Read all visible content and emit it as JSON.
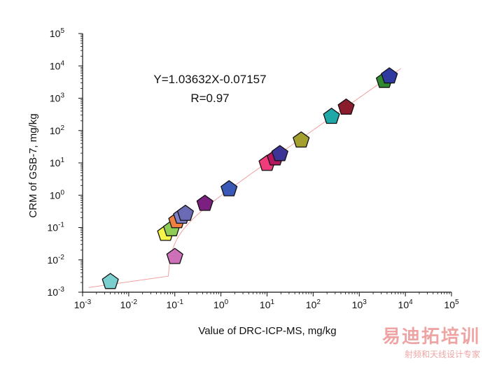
{
  "chart_data": {
    "type": "scatter",
    "title": "",
    "xlabel": "Value of DRC-ICP-MS, mg/kg",
    "ylabel": "CRM of GSB-7, mg/kg",
    "x_scale": "log",
    "y_scale": "log",
    "xlim": [
      0.001,
      100000
    ],
    "ylim": [
      0.001,
      100000
    ],
    "x_ticks": [
      {
        "base": "10",
        "exp": "-3"
      },
      {
        "base": "10",
        "exp": "-2"
      },
      {
        "base": "10",
        "exp": "-1"
      },
      {
        "base": "10",
        "exp": "0"
      },
      {
        "base": "10",
        "exp": "1"
      },
      {
        "base": "10",
        "exp": "2"
      },
      {
        "base": "10",
        "exp": "3"
      },
      {
        "base": "10",
        "exp": "4"
      },
      {
        "base": "10",
        "exp": "5"
      }
    ],
    "y_ticks": [
      {
        "base": "10",
        "exp": "-3"
      },
      {
        "base": "10",
        "exp": "-2"
      },
      {
        "base": "10",
        "exp": "-1"
      },
      {
        "base": "10",
        "exp": "0"
      },
      {
        "base": "10",
        "exp": "1"
      },
      {
        "base": "10",
        "exp": "2"
      },
      {
        "base": "10",
        "exp": "3"
      },
      {
        "base": "10",
        "exp": "4"
      },
      {
        "base": "10",
        "exp": "5"
      }
    ],
    "grid": false,
    "marker": "pentagon",
    "fit_line": {
      "slope": 1.03632,
      "intercept": -0.07157,
      "color": "#f0a0a0"
    },
    "annotations": [
      "Y=1.03632X-0.07157",
      "R=0.97"
    ],
    "points": [
      {
        "x": 0.004,
        "y": 0.0021,
        "color": "#7ccfcf"
      },
      {
        "x": 0.1,
        "y": 0.0125,
        "color": "#cc70b8"
      },
      {
        "x": 0.063,
        "y": 0.065,
        "color": "#f5f54a"
      },
      {
        "x": 0.085,
        "y": 0.09,
        "color": "#8fcc55"
      },
      {
        "x": 0.11,
        "y": 0.16,
        "color": "#f08040"
      },
      {
        "x": 0.14,
        "y": 0.22,
        "color": "#8080c8"
      },
      {
        "x": 0.17,
        "y": 0.27,
        "color": "#6b6bb5"
      },
      {
        "x": 0.45,
        "y": 0.55,
        "color": "#7b1f80"
      },
      {
        "x": 1.5,
        "y": 1.55,
        "color": "#3a58b5"
      },
      {
        "x": 10,
        "y": 9.5,
        "color": "#f03c7a"
      },
      {
        "x": 15,
        "y": 14,
        "color": "#b3155e"
      },
      {
        "x": 19,
        "y": 19,
        "color": "#3d3596"
      },
      {
        "x": 55,
        "y": 50,
        "color": "#a3a030"
      },
      {
        "x": 250,
        "y": 270,
        "color": "#1fa8a8"
      },
      {
        "x": 520,
        "y": 520,
        "color": "#8a1c2c"
      },
      {
        "x": 3500,
        "y": 3500,
        "color": "#2e8a2e"
      },
      {
        "x": 4500,
        "y": 4800,
        "color": "#2e3aa0"
      }
    ]
  },
  "watermark": {
    "main": "易迪拓培训",
    "sub": "射频和天线设计专家"
  }
}
